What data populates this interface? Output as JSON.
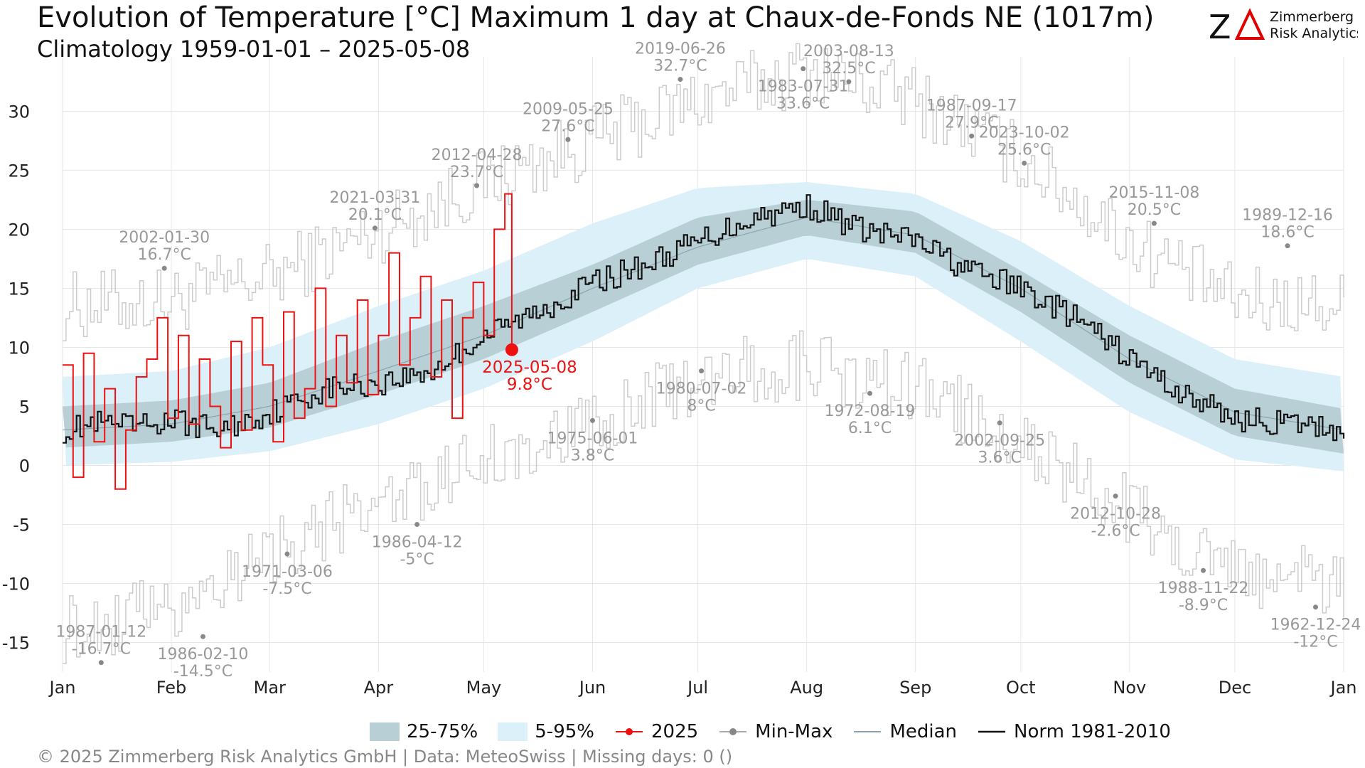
{
  "title": "Evolution of Temperature [°C] Maximum 1 day at Chaux-de-Fonds  NE (1017m)",
  "subtitle": "Climatology 1959-01-01 – 2025-05-08",
  "logo": {
    "mark": "ZΔ",
    "line1": "Zimmerberg",
    "line2": "Risk Analytics"
  },
  "footer": "©  2025 Zimmerberg Risk Analytics GmbH | Data: MeteoSwiss | Missing days: 0 ()",
  "legend": {
    "iqr": "25-75%",
    "p5_95": "5-95%",
    "current": "2025",
    "minmax": "Min-Max",
    "median": "Median",
    "norm": "Norm 1981-2010"
  },
  "colors": {
    "iqr": "#b9cfd6",
    "p5_95": "#dcf0f9",
    "current": "#ee1111",
    "record": "#cccccc",
    "record_point": "#888888",
    "median": "#8aa4ad",
    "norm": "#111111",
    "label": "#999999"
  },
  "chart_data": {
    "type": "line",
    "x_axis": {
      "ticks": [
        "Jan",
        "Feb",
        "Mar",
        "Apr",
        "May",
        "Jun",
        "Jul",
        "Aug",
        "Sep",
        "Oct",
        "Nov",
        "Dec",
        "Jan"
      ],
      "range_days": [
        0,
        365
      ]
    },
    "y_axis": {
      "ticks": [
        30,
        25,
        20,
        15,
        10,
        5,
        0,
        -5,
        -10,
        -15
      ],
      "ylim": [
        -17.5,
        34
      ]
    },
    "grid": true,
    "legend_position": "bottom",
    "climatology_anchors": {
      "day": [
        0,
        31,
        59,
        90,
        120,
        151,
        181,
        212,
        243,
        273,
        304,
        334,
        365
      ],
      "median": [
        3.0,
        3.5,
        5.0,
        8.0,
        11.0,
        15.0,
        18.5,
        21.0,
        19.5,
        15.0,
        9.0,
        4.5,
        3.0
      ],
      "p25": [
        1.5,
        2.0,
        3.2,
        6.0,
        9.0,
        13.0,
        17.0,
        19.5,
        18.0,
        13.0,
        7.0,
        2.5,
        1.0
      ],
      "p75": [
        5.0,
        5.5,
        7.0,
        10.5,
        13.5,
        17.0,
        21.0,
        22.5,
        21.5,
        16.5,
        11.0,
        6.5,
        4.8
      ],
      "p5": [
        0.0,
        0.3,
        1.2,
        3.5,
        6.5,
        10.5,
        15.0,
        17.5,
        16.0,
        10.5,
        4.5,
        0.5,
        -0.5
      ],
      "p95": [
        7.5,
        8.0,
        10.0,
        13.5,
        16.5,
        20.5,
        23.5,
        24.0,
        23.0,
        19.0,
        13.5,
        9.0,
        7.5
      ],
      "record_max": [
        13.5,
        14.0,
        16.0,
        20.0,
        24.0,
        27.5,
        31.0,
        33.5,
        31.0,
        26.0,
        19.0,
        14.0,
        13.5
      ],
      "record_min": [
        -14.0,
        -12.0,
        -7.0,
        -3.5,
        0.5,
        3.5,
        7.5,
        8.5,
        6.5,
        2.0,
        -4.0,
        -9.0,
        -10.0
      ]
    },
    "norm_1981_2010": {
      "day": [
        0,
        10,
        20,
        31,
        45,
        59,
        75,
        90,
        105,
        120,
        135,
        151,
        166,
        181,
        196,
        212,
        227,
        243,
        258,
        273,
        288,
        304,
        319,
        334,
        349,
        365
      ],
      "value": [
        3.0,
        3.5,
        3.2,
        3.8,
        3.0,
        4.5,
        6.5,
        7.0,
        8.0,
        11.0,
        13.0,
        15.5,
        17.0,
        19.0,
        21.0,
        22.0,
        20.0,
        19.0,
        16.5,
        15.0,
        12.5,
        9.0,
        6.0,
        4.0,
        3.5,
        3.0
      ]
    },
    "current_2025": {
      "day": [
        0,
        3,
        6,
        9,
        12,
        15,
        18,
        21,
        24,
        27,
        30,
        33,
        36,
        39,
        42,
        45,
        48,
        51,
        54,
        57,
        60,
        63,
        66,
        69,
        72,
        75,
        78,
        81,
        84,
        87,
        90,
        93,
        96,
        99,
        102,
        105,
        108,
        111,
        114,
        117,
        120,
        123,
        126,
        128
      ],
      "value": [
        8.5,
        -1.0,
        9.5,
        2.0,
        6.5,
        -2.0,
        3.0,
        7.5,
        9.0,
        12.5,
        4.0,
        11.0,
        3.5,
        9.0,
        5.0,
        1.5,
        10.5,
        3.0,
        12.5,
        8.5,
        2.0,
        13.0,
        4.0,
        6.5,
        15.0,
        5.0,
        11.0,
        7.0,
        14.0,
        6.0,
        11.0,
        18.0,
        8.5,
        12.5,
        16.0,
        7.5,
        14.0,
        4.0,
        12.5,
        15.5,
        11.0,
        20.0,
        23.0,
        9.8
      ]
    },
    "last_point": {
      "day": 128,
      "value": 9.8,
      "label_date": "2025-05-08",
      "label_value": "9.8°C"
    },
    "record_annotations": [
      {
        "date": "2002-01-30",
        "value": "16.7°C",
        "day": 29,
        "y": 16.7,
        "side": "above"
      },
      {
        "date": "2021-03-31",
        "value": "20.1°C",
        "day": 89,
        "y": 20.1,
        "side": "above"
      },
      {
        "date": "2012-04-28",
        "value": "23.7°C",
        "day": 118,
        "y": 23.7,
        "side": "above"
      },
      {
        "date": "2009-05-25",
        "value": "27.6°C",
        "day": 144,
        "y": 27.6,
        "side": "above"
      },
      {
        "date": "2019-06-26",
        "value": "32.7°C",
        "day": 176,
        "y": 32.7,
        "side": "above"
      },
      {
        "date": "1983-07-31",
        "value": "33.6°C",
        "day": 211,
        "y": 33.6,
        "side": "below"
      },
      {
        "date": "2003-08-13",
        "value": "32.5°C",
        "day": 224,
        "y": 32.5,
        "side": "above"
      },
      {
        "date": "1987-09-17",
        "value": "27.9°C",
        "day": 259,
        "y": 27.9,
        "side": "above"
      },
      {
        "date": "2023-10-02",
        "value": "25.6°C",
        "day": 274,
        "y": 25.6,
        "side": "above"
      },
      {
        "date": "2015-11-08",
        "value": "20.5°C",
        "day": 311,
        "y": 20.5,
        "side": "above"
      },
      {
        "date": "1989-12-16",
        "value": "18.6°C",
        "day": 349,
        "y": 18.6,
        "side": "above"
      },
      {
        "date": "1987-01-12",
        "value": "-16.7°C",
        "day": 11,
        "y": -16.7,
        "side": "above"
      },
      {
        "date": "1986-02-10",
        "value": "-14.5°C",
        "day": 40,
        "y": -14.5,
        "side": "below"
      },
      {
        "date": "1971-03-06",
        "value": "-7.5°C",
        "day": 64,
        "y": -7.5,
        "side": "below"
      },
      {
        "date": "1986-04-12",
        "value": "-5°C",
        "day": 101,
        "y": -5.0,
        "side": "below"
      },
      {
        "date": "1975-06-01",
        "value": "3.8°C",
        "day": 151,
        "y": 3.8,
        "side": "below"
      },
      {
        "date": "1980-07-02",
        "value": "8°C",
        "day": 182,
        "y": 8.0,
        "side": "below"
      },
      {
        "date": "1972-08-19",
        "value": "6.1°C",
        "day": 230,
        "y": 6.1,
        "side": "below"
      },
      {
        "date": "2002-09-25",
        "value": "3.6°C",
        "day": 267,
        "y": 3.6,
        "side": "below"
      },
      {
        "date": "2012-10-28",
        "value": "-2.6°C",
        "day": 300,
        "y": -2.6,
        "side": "below"
      },
      {
        "date": "1988-11-22",
        "value": "-8.9°C",
        "day": 325,
        "y": -8.9,
        "side": "below"
      },
      {
        "date": "1962-12-24",
        "value": "-12°C",
        "day": 357,
        "y": -12.0,
        "side": "below"
      }
    ]
  }
}
